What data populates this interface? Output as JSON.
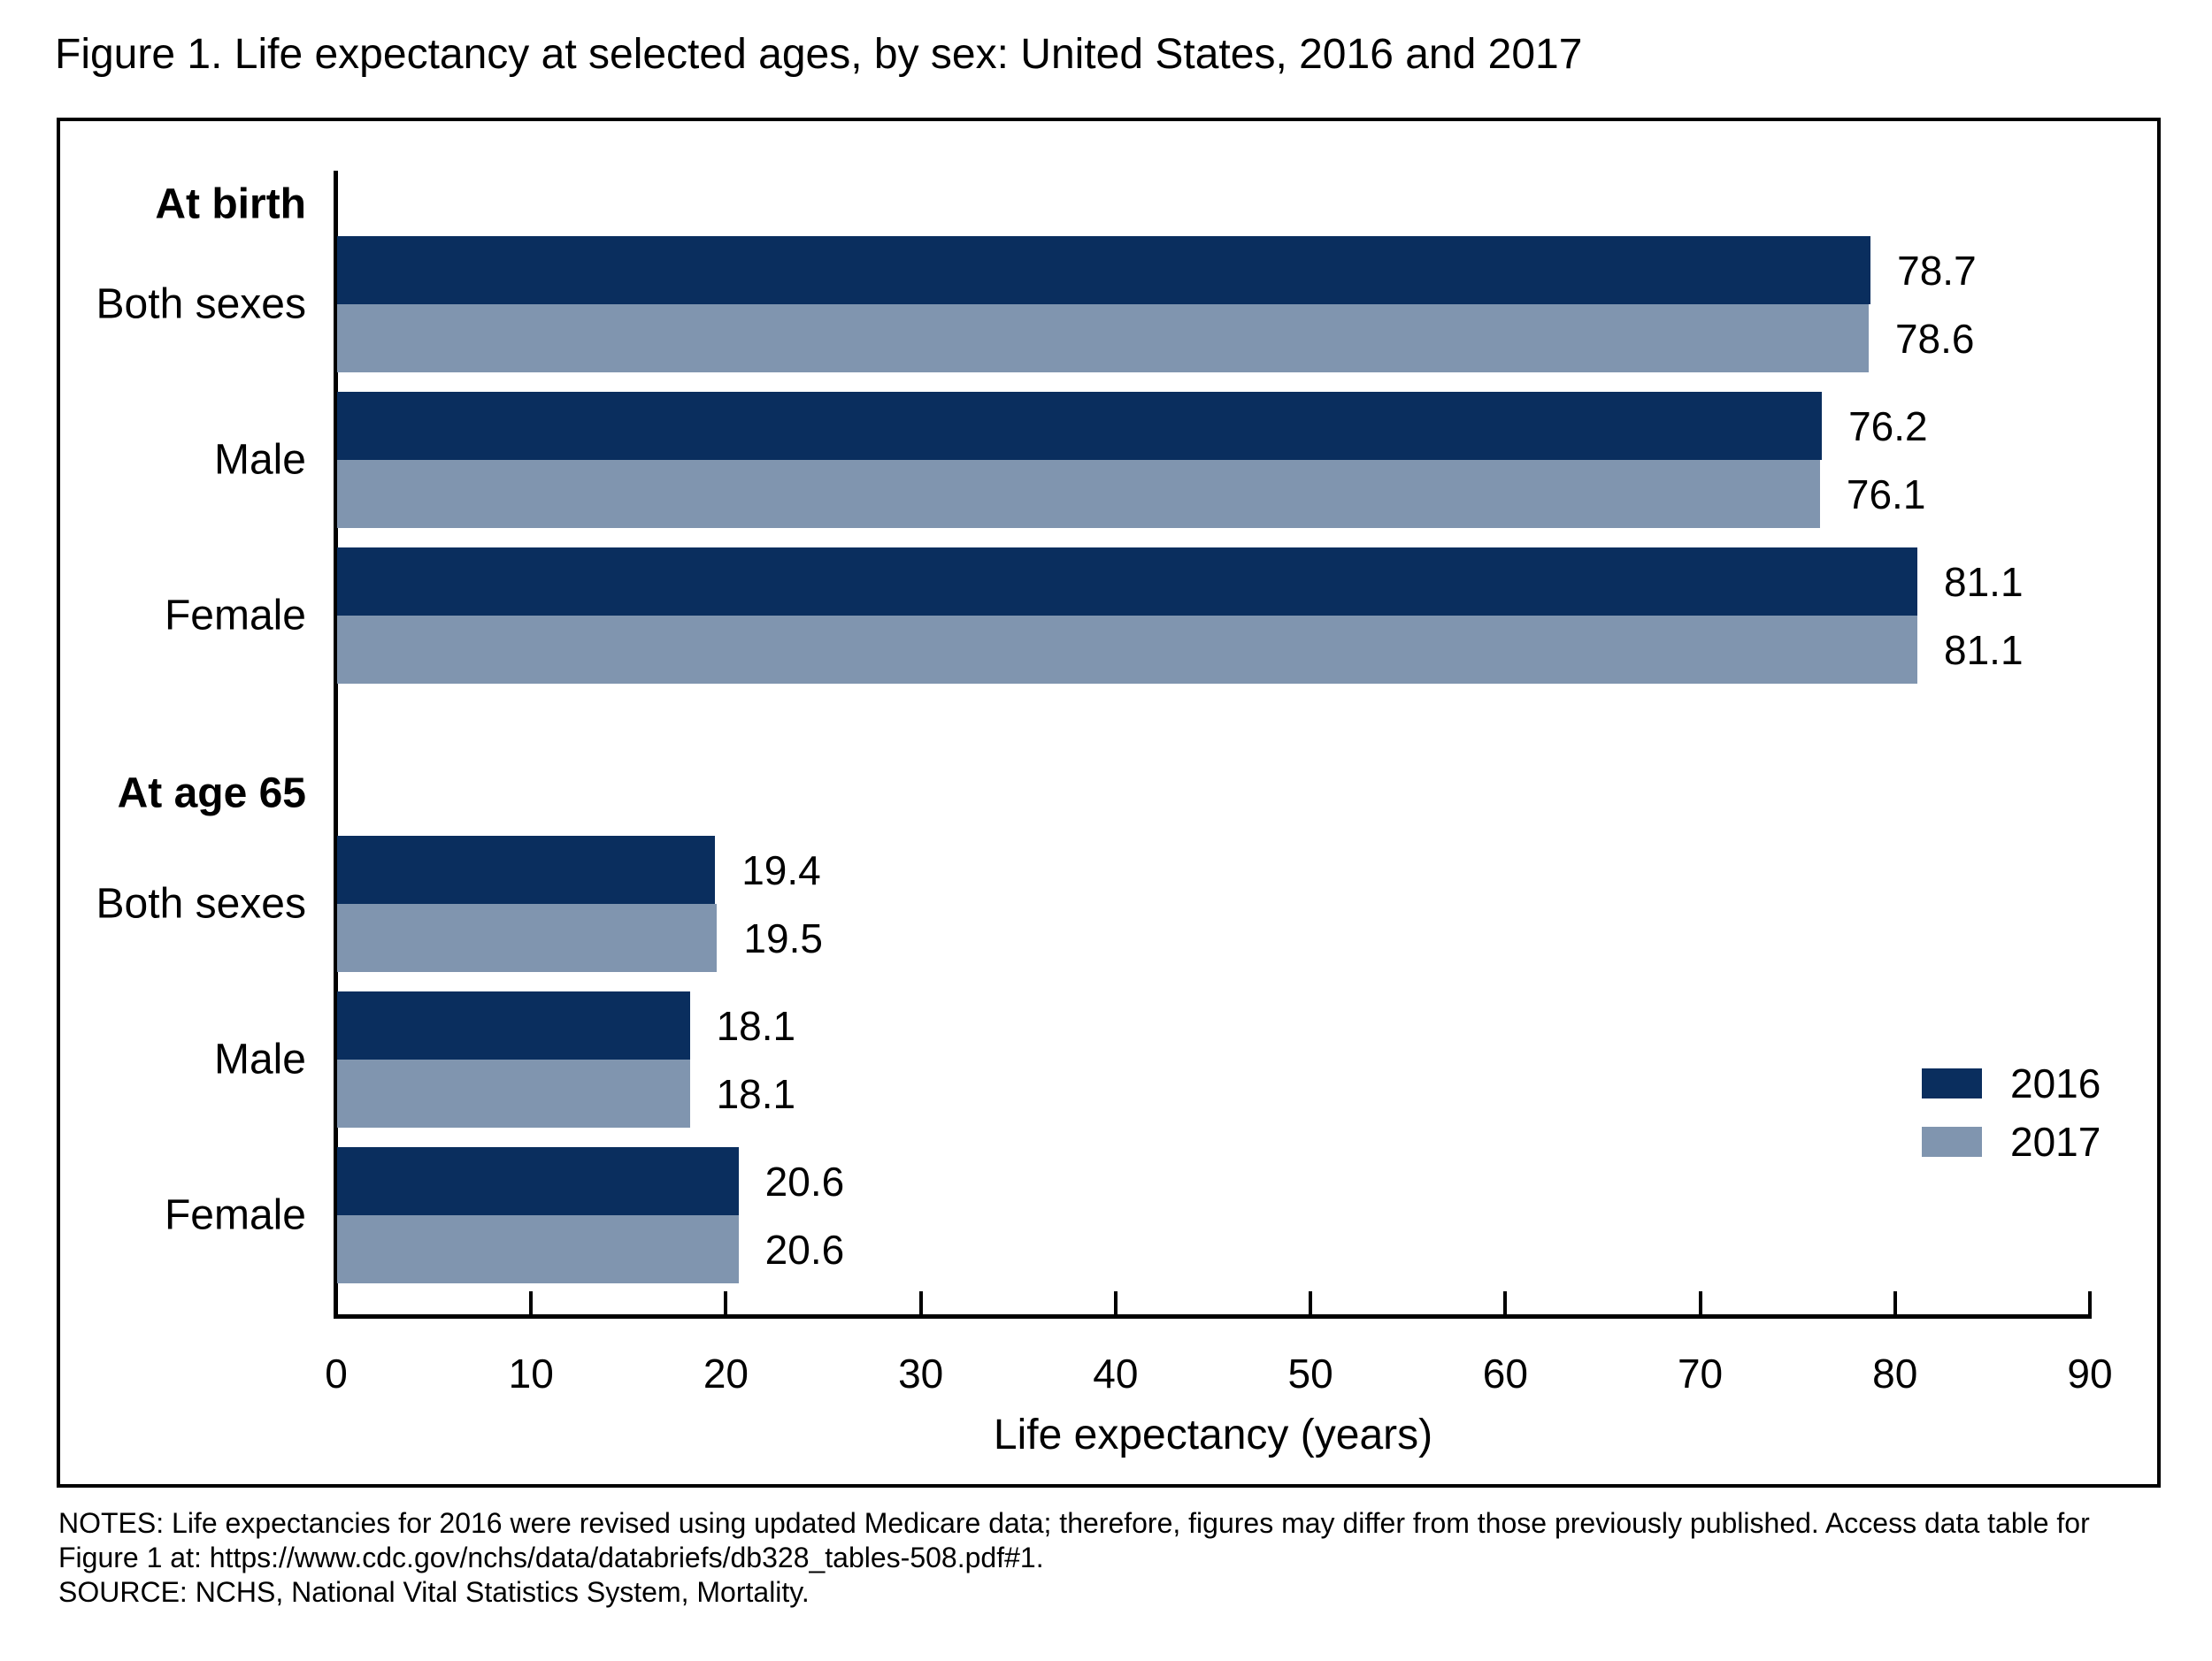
{
  "title": "Figure 1. Life expectancy at selected ages, by sex: United States, 2016 and 2017",
  "colors": {
    "bar_2016": "#0a2e5e",
    "bar_2017": "#8095af",
    "axis": "#000000",
    "text": "#000000"
  },
  "legend": {
    "items": [
      {
        "label": "2016",
        "color_key": "bar_2016"
      },
      {
        "label": "2017",
        "color_key": "bar_2017"
      }
    ]
  },
  "chart_data": {
    "type": "bar",
    "orientation": "horizontal",
    "xlabel": "Life expectancy (years)",
    "xlim": [
      0,
      90
    ],
    "xticks": [
      0,
      10,
      20,
      30,
      40,
      50,
      60,
      70,
      80,
      90
    ],
    "series_names": [
      "2016",
      "2017"
    ],
    "sections": [
      {
        "label": "At birth",
        "rows": [
          {
            "category": "Both sexes",
            "values": {
              "2016": 78.7,
              "2017": 78.6
            }
          },
          {
            "category": "Male",
            "values": {
              "2016": 76.2,
              "2017": 76.1
            }
          },
          {
            "category": "Female",
            "values": {
              "2016": 81.1,
              "2017": 81.1
            }
          }
        ]
      },
      {
        "label": "At age 65",
        "rows": [
          {
            "category": "Both sexes",
            "values": {
              "2016": 19.4,
              "2017": 19.5
            }
          },
          {
            "category": "Male",
            "values": {
              "2016": 18.1,
              "2017": 18.1
            }
          },
          {
            "category": "Female",
            "values": {
              "2016": 20.6,
              "2017": 20.6
            }
          }
        ]
      }
    ]
  },
  "notes_lines": [
    "NOTES: Life expectancies for 2016 were revised using updated Medicare data; therefore, figures may differ from those previously published. Access data table for",
    "Figure 1 at: https://www.cdc.gov/nchs/data/databriefs/db328_tables-508.pdf#1."
  ],
  "source": "SOURCE: NCHS, National Vital Statistics System, Mortality."
}
